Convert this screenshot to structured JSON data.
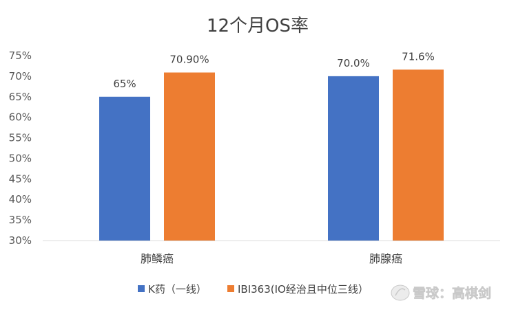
{
  "chart_data": {
    "type": "bar",
    "title": "12个月OS率",
    "categories": [
      "肺鳞癌",
      "肺腺癌"
    ],
    "series": [
      {
        "name": "K药（一线）",
        "values": [
          65,
          70
        ],
        "labels": [
          "65%",
          "70.0%"
        ],
        "color": "#4472C4"
      },
      {
        "name": "IBI363(IO经治且中位三线）",
        "values": [
          70.9,
          71.6
        ],
        "labels": [
          "70.90%",
          "71.6%"
        ],
        "color": "#ED7D31"
      }
    ],
    "ylim": [
      30,
      75
    ],
    "yticks": [
      30,
      35,
      40,
      45,
      50,
      55,
      60,
      65,
      70,
      75
    ],
    "ytick_labels": [
      "30%",
      "35%",
      "40%",
      "45%",
      "50%",
      "55%",
      "60%",
      "65%",
      "70%",
      "75%"
    ],
    "xlabel": "",
    "ylabel": "",
    "grid": false,
    "legend": "bottom"
  },
  "watermark": {
    "text": "雪球：高棋剑"
  }
}
